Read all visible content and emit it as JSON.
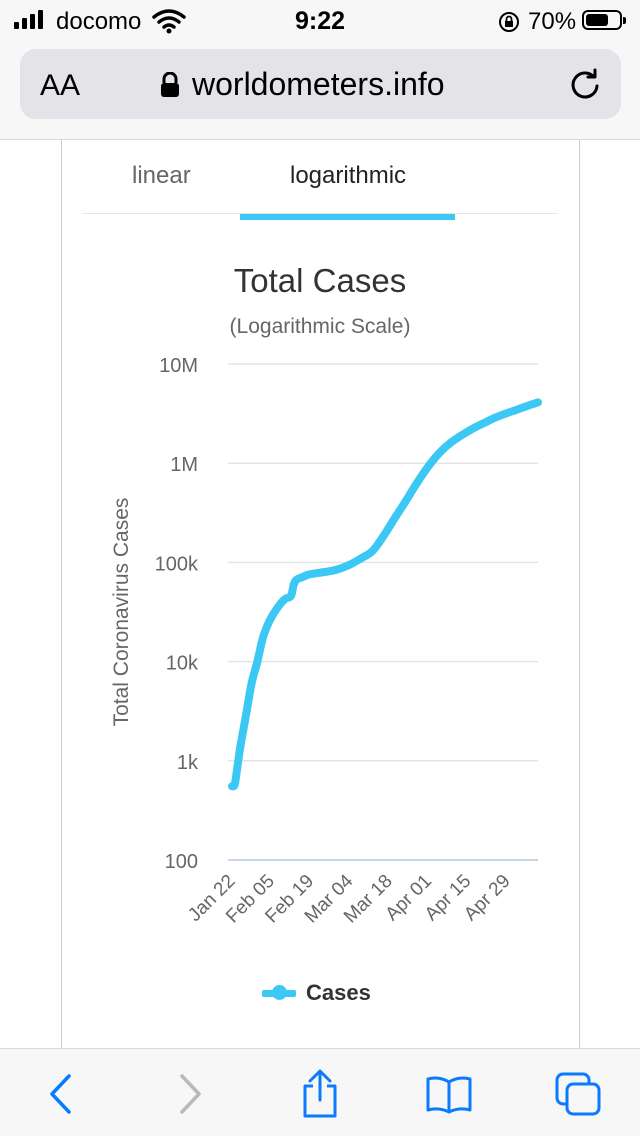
{
  "status_bar": {
    "carrier": "docomo",
    "time": "9:22",
    "battery_percent": "70%",
    "battery_level": 0.7,
    "icons": [
      "signal-icon",
      "wifi-icon",
      "orientation-lock-icon",
      "battery-icon"
    ]
  },
  "url_bar": {
    "text_size_label": "AA",
    "host": "worldometers.info",
    "icons": [
      "lock-icon",
      "reload-icon"
    ]
  },
  "tabs": [
    {
      "label": "linear",
      "active": false
    },
    {
      "label": "logarithmic",
      "active": true
    }
  ],
  "colors": {
    "accent": "#3bc8f4",
    "ios_blue": "#0a7aff",
    "disabled": "#b8b8bd"
  },
  "chart_data": {
    "type": "line",
    "title": "Total Cases",
    "subtitle": "(Logarithmic Scale)",
    "ylabel": "Total Coronavirus Cases",
    "yscale": "log",
    "ylim": [
      100,
      10000000
    ],
    "ytick_labels": [
      "100",
      "1k",
      "10k",
      "100k",
      "1M",
      "10M"
    ],
    "ytick_values": [
      100,
      1000,
      10000,
      100000,
      1000000,
      10000000
    ],
    "xtick_labels": [
      "Jan 22",
      "Feb 05",
      "Feb 19",
      "Mar 04",
      "Mar 18",
      "Apr 01",
      "Apr 15",
      "Apr 29"
    ],
    "xlim": [
      "Jan 22",
      "May 10"
    ],
    "grid": true,
    "legend_position": "bottom",
    "series": [
      {
        "name": "Cases",
        "color": "#3bc8f4",
        "x": [
          "Jan 22",
          "Jan 23",
          "Jan 24",
          "Jan 25",
          "Jan 27",
          "Jan 29",
          "Jan 31",
          "Feb 02",
          "Feb 04",
          "Feb 06",
          "Feb 08",
          "Feb 10",
          "Feb 12",
          "Feb 13",
          "Feb 14",
          "Feb 16",
          "Feb 18",
          "Feb 20",
          "Feb 24",
          "Feb 28",
          "Mar 04",
          "Mar 08",
          "Mar 12",
          "Mar 16",
          "Mar 20",
          "Mar 24",
          "Mar 28",
          "Apr 01",
          "Apr 05",
          "Apr 09",
          "Apr 13",
          "Apr 17",
          "Apr 21",
          "Apr 25",
          "Apr 29",
          "May 03",
          "May 07",
          "May 10"
        ],
        "y": [
          555,
          580,
          900,
          1400,
          2900,
          6100,
          9900,
          17400,
          24500,
          31000,
          37500,
          43000,
          46000,
          60000,
          67000,
          71000,
          75000,
          77000,
          80000,
          84000,
          95000,
          110000,
          130000,
          185000,
          280000,
          420000,
          640000,
          935000,
          1280000,
          1620000,
          1930000,
          2250000,
          2560000,
          2900000,
          3200000,
          3500000,
          3850000,
          4100000
        ]
      }
    ]
  },
  "toolbar": {
    "items": [
      "back-icon",
      "forward-icon",
      "share-icon",
      "bookmarks-icon",
      "tabs-icon"
    ]
  }
}
